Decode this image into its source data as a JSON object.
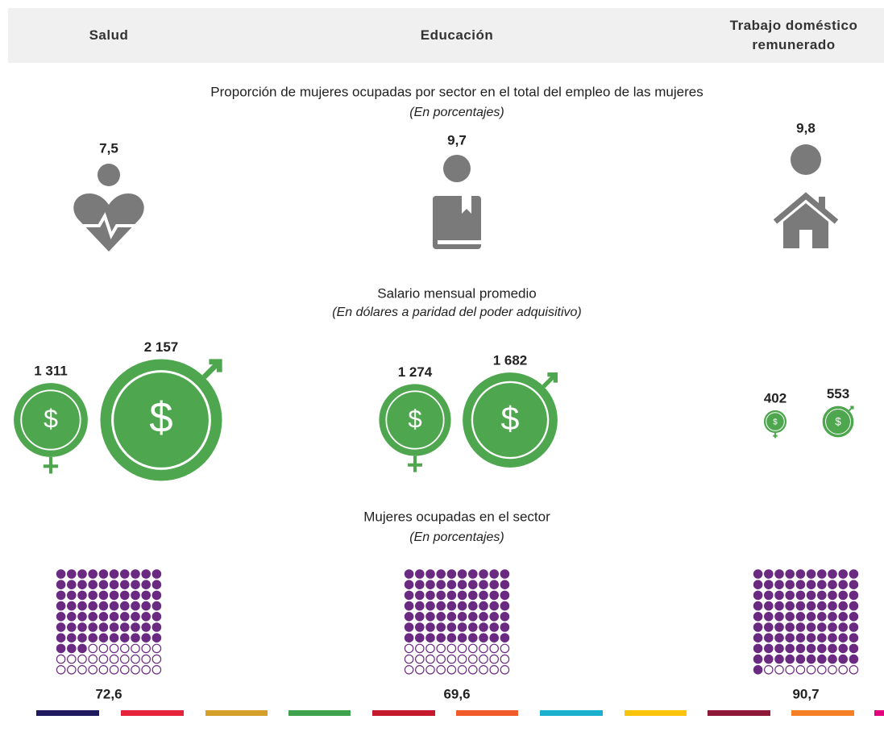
{
  "header": {
    "columns": [
      "Salud",
      "Educación",
      "Trabajo doméstico remunerado"
    ]
  },
  "sections": {
    "share": {
      "title": "Proporción de mujeres ocupadas por sector en el total del empleo de las mujeres",
      "subtitle": "(En porcentajes)"
    },
    "salary": {
      "title": "Salario mensual promedio",
      "subtitle": "(En dólares a paridad del poder adquisitivo)"
    },
    "women": {
      "title": "Mujeres ocupadas en el sector",
      "subtitle": "(En porcentajes)"
    }
  },
  "sectors": [
    {
      "share": 7.5,
      "share_label": "7,5",
      "salary_female": 1311,
      "salary_female_label": "1 311",
      "salary_male": 2157,
      "salary_male_label": "2 157",
      "currency": "$",
      "women_share": 72.6,
      "women_share_label": "72,6"
    },
    {
      "share": 9.7,
      "share_label": "9,7",
      "salary_female": 1274,
      "salary_female_label": "1 274",
      "salary_male": 1682,
      "salary_male_label": "1 682",
      "currency": "$",
      "women_share": 69.6,
      "women_share_label": "69,6"
    },
    {
      "share": 9.8,
      "share_label": "9,8",
      "salary_female": 402,
      "salary_female_label": "402",
      "salary_male": 553,
      "salary_male_label": "553",
      "currency": "$",
      "women_share": 90.7,
      "women_share_label": "90,7"
    }
  ],
  "colors": {
    "icon": "#7a7a7a",
    "salary": "#4ea64e",
    "dots": "#6b2a82"
  }
}
